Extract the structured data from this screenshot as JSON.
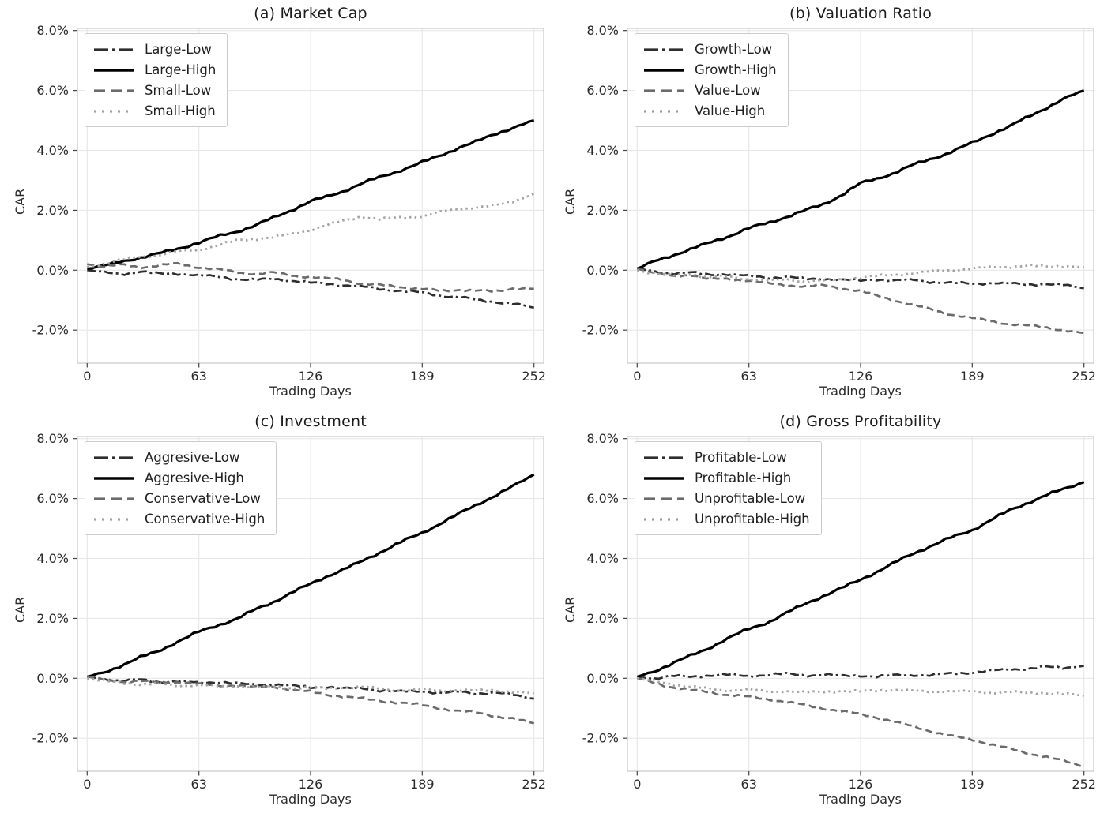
{
  "figure": {
    "background": "#ffffff",
    "grid_color": "#e7e7e7",
    "spine_color": "#cccccc",
    "tick_color": "#444444",
    "text_color": "#2a2a2a"
  },
  "line_styles": {
    "dashdot": {
      "color": "#2e2e2e",
      "width": 2.7,
      "dash": "11 4 3 4",
      "legend_dash": "18 5 3 5"
    },
    "solid": {
      "color": "#000000",
      "width": 3.2,
      "dash": "",
      "legend_dash": ""
    },
    "dashed": {
      "color": "#6b6b6b",
      "width": 2.7,
      "dash": "9 5",
      "legend_dash": "14 7"
    },
    "dotted": {
      "color": "#a3a3a3",
      "width": 2.8,
      "dash": "2.5 4.2",
      "legend_dash": "3 7"
    }
  },
  "axes": {
    "xlim": [
      -5.5,
      257.5
    ],
    "ylim": [
      -3.1,
      8.07
    ],
    "x_ticks": [
      0,
      63,
      126,
      189,
      252
    ],
    "x_tick_labels": [
      "0",
      "63",
      "126",
      "189",
      "252"
    ],
    "y_ticks": [
      8,
      6,
      4,
      2,
      0,
      -2
    ],
    "y_tick_labels": [
      "8.0%",
      "6.0%",
      "4.0%",
      "2.0%",
      "0.0%",
      "-2.0%"
    ],
    "grid": true,
    "legend_position": "upper left"
  },
  "chart_data": [
    {
      "id": "a",
      "type": "line",
      "title": "(a) Market Cap",
      "xlabel": "Trading Days",
      "ylabel": "CAR",
      "x": [
        0,
        10,
        20,
        30,
        40,
        50,
        63,
        75,
        85,
        95,
        105,
        115,
        126,
        135,
        145,
        155,
        165,
        175,
        189,
        200,
        210,
        220,
        230,
        240,
        252
      ],
      "series": [
        {
          "name": "Large-Low",
          "style": "dashdot",
          "values": [
            0.0,
            -0.08,
            -0.12,
            -0.05,
            -0.12,
            -0.1,
            -0.18,
            -0.22,
            -0.3,
            -0.33,
            -0.28,
            -0.35,
            -0.42,
            -0.45,
            -0.5,
            -0.55,
            -0.62,
            -0.68,
            -0.75,
            -0.85,
            -0.9,
            -1.0,
            -1.05,
            -1.12,
            -1.25
          ]
        },
        {
          "name": "Large-High",
          "style": "solid",
          "values": [
            0.05,
            0.15,
            0.3,
            0.42,
            0.55,
            0.7,
            0.92,
            1.15,
            1.3,
            1.5,
            1.75,
            2.0,
            2.3,
            2.45,
            2.65,
            2.9,
            3.1,
            3.3,
            3.6,
            3.85,
            4.1,
            4.3,
            4.55,
            4.75,
            5.0
          ]
        },
        {
          "name": "Small-Low",
          "style": "dashed",
          "values": [
            0.2,
            0.12,
            0.18,
            0.1,
            0.15,
            0.22,
            0.1,
            0.02,
            -0.08,
            -0.12,
            -0.08,
            -0.18,
            -0.22,
            -0.28,
            -0.32,
            -0.45,
            -0.5,
            -0.55,
            -0.62,
            -0.7,
            -0.65,
            -0.68,
            -0.72,
            -0.6,
            -0.62
          ]
        },
        {
          "name": "Small-High",
          "style": "dotted",
          "values": [
            0.1,
            0.22,
            0.35,
            0.45,
            0.5,
            0.62,
            0.68,
            0.85,
            1.0,
            1.05,
            1.1,
            1.2,
            1.35,
            1.5,
            1.65,
            1.8,
            1.7,
            1.75,
            1.8,
            1.95,
            2.05,
            2.1,
            2.15,
            2.3,
            2.55
          ]
        }
      ]
    },
    {
      "id": "b",
      "type": "line",
      "title": "(b) Valuation Ratio",
      "xlabel": "Trading Days",
      "ylabel": "CAR",
      "x": [
        0,
        10,
        20,
        30,
        40,
        50,
        63,
        75,
        85,
        95,
        105,
        115,
        126,
        135,
        145,
        155,
        165,
        175,
        189,
        200,
        210,
        220,
        230,
        240,
        252
      ],
      "series": [
        {
          "name": "Growth-Low",
          "style": "dashdot",
          "values": [
            0.05,
            -0.05,
            -0.1,
            -0.08,
            -0.15,
            -0.12,
            -0.2,
            -0.25,
            -0.22,
            -0.3,
            -0.28,
            -0.32,
            -0.35,
            -0.3,
            -0.35,
            -0.32,
            -0.38,
            -0.42,
            -0.45,
            -0.42,
            -0.45,
            -0.48,
            -0.45,
            -0.5,
            -0.6
          ]
        },
        {
          "name": "Growth-High",
          "style": "solid",
          "values": [
            0.05,
            0.3,
            0.5,
            0.7,
            0.9,
            1.1,
            1.4,
            1.6,
            1.8,
            2.0,
            2.2,
            2.5,
            2.9,
            3.05,
            3.25,
            3.5,
            3.7,
            3.9,
            4.25,
            4.55,
            4.8,
            5.1,
            5.4,
            5.7,
            6.0
          ]
        },
        {
          "name": "Value-Low",
          "style": "dashed",
          "values": [
            0.05,
            -0.1,
            -0.2,
            -0.15,
            -0.3,
            -0.28,
            -0.35,
            -0.45,
            -0.5,
            -0.55,
            -0.5,
            -0.6,
            -0.7,
            -0.85,
            -1.0,
            -1.15,
            -1.3,
            -1.45,
            -1.6,
            -1.7,
            -1.8,
            -1.85,
            -1.9,
            -2.0,
            -2.1
          ]
        },
        {
          "name": "Value-High",
          "style": "dotted",
          "values": [
            0.0,
            -0.12,
            -0.18,
            -0.12,
            -0.25,
            -0.2,
            -0.3,
            -0.35,
            -0.3,
            -0.38,
            -0.35,
            -0.3,
            -0.25,
            -0.2,
            -0.15,
            -0.1,
            -0.05,
            0.0,
            0.05,
            0.1,
            0.12,
            0.15,
            0.12,
            0.15,
            0.1
          ]
        }
      ]
    },
    {
      "id": "c",
      "type": "line",
      "title": "(c) Investment",
      "xlabel": "Trading Days",
      "ylabel": "CAR",
      "x": [
        0,
        10,
        20,
        30,
        40,
        50,
        63,
        75,
        85,
        95,
        105,
        115,
        126,
        135,
        145,
        155,
        165,
        175,
        189,
        200,
        210,
        220,
        230,
        240,
        252
      ],
      "series": [
        {
          "name": "Aggresive-Low",
          "style": "dashdot",
          "values": [
            0.05,
            -0.02,
            -0.08,
            -0.05,
            -0.12,
            -0.1,
            -0.15,
            -0.12,
            -0.18,
            -0.22,
            -0.2,
            -0.25,
            -0.3,
            -0.28,
            -0.35,
            -0.32,
            -0.4,
            -0.45,
            -0.42,
            -0.5,
            -0.45,
            -0.5,
            -0.48,
            -0.55,
            -0.68
          ]
        },
        {
          "name": "Aggresive-High",
          "style": "solid",
          "values": [
            0.05,
            0.2,
            0.45,
            0.7,
            0.9,
            1.2,
            1.55,
            1.8,
            2.0,
            2.3,
            2.55,
            2.85,
            3.15,
            3.4,
            3.65,
            3.9,
            4.2,
            4.5,
            4.85,
            5.2,
            5.5,
            5.8,
            6.1,
            6.4,
            6.8
          ]
        },
        {
          "name": "Conservative-Low",
          "style": "dashed",
          "values": [
            0.05,
            -0.05,
            -0.12,
            -0.08,
            -0.15,
            -0.12,
            -0.18,
            -0.25,
            -0.22,
            -0.3,
            -0.28,
            -0.38,
            -0.45,
            -0.55,
            -0.6,
            -0.68,
            -0.75,
            -0.8,
            -0.9,
            -1.0,
            -1.1,
            -1.15,
            -1.25,
            -1.35,
            -1.5
          ]
        },
        {
          "name": "Conservative-High",
          "style": "dotted",
          "values": [
            0.0,
            -0.1,
            -0.15,
            -0.2,
            -0.18,
            -0.25,
            -0.22,
            -0.28,
            -0.25,
            -0.3,
            -0.28,
            -0.32,
            -0.3,
            -0.35,
            -0.3,
            -0.28,
            -0.35,
            -0.4,
            -0.38,
            -0.42,
            -0.38,
            -0.42,
            -0.4,
            -0.45,
            -0.5
          ]
        }
      ]
    },
    {
      "id": "d",
      "type": "line",
      "title": "(d) Gross Profitability",
      "xlabel": "Trading Days",
      "ylabel": "CAR",
      "x": [
        0,
        10,
        20,
        30,
        40,
        50,
        63,
        75,
        85,
        95,
        105,
        115,
        126,
        135,
        145,
        155,
        165,
        175,
        189,
        200,
        210,
        220,
        230,
        240,
        252
      ],
      "series": [
        {
          "name": "Profitable-Low",
          "style": "dashdot",
          "values": [
            0.05,
            0.0,
            0.08,
            0.05,
            0.1,
            0.12,
            0.08,
            0.12,
            0.15,
            0.1,
            0.12,
            0.08,
            0.1,
            0.05,
            0.1,
            0.12,
            0.1,
            0.15,
            0.2,
            0.25,
            0.3,
            0.32,
            0.38,
            0.35,
            0.42
          ]
        },
        {
          "name": "Profitable-High",
          "style": "solid",
          "values": [
            0.05,
            0.25,
            0.5,
            0.75,
            1.0,
            1.3,
            1.65,
            1.9,
            2.2,
            2.5,
            2.75,
            3.0,
            3.3,
            3.55,
            3.85,
            4.15,
            4.4,
            4.65,
            4.95,
            5.3,
            5.6,
            5.85,
            6.1,
            6.3,
            6.55
          ]
        },
        {
          "name": "Unprofitable-Low",
          "style": "dashed",
          "values": [
            0.0,
            -0.15,
            -0.3,
            -0.4,
            -0.45,
            -0.55,
            -0.62,
            -0.7,
            -0.8,
            -0.9,
            -1.0,
            -1.1,
            -1.2,
            -1.3,
            -1.45,
            -1.6,
            -1.75,
            -1.9,
            -2.05,
            -2.2,
            -2.35,
            -2.5,
            -2.6,
            -2.75,
            -2.95
          ]
        },
        {
          "name": "Unprofitable-High",
          "style": "dotted",
          "values": [
            0.0,
            -0.1,
            -0.2,
            -0.28,
            -0.35,
            -0.4,
            -0.38,
            -0.45,
            -0.42,
            -0.48,
            -0.45,
            -0.42,
            -0.45,
            -0.4,
            -0.38,
            -0.42,
            -0.45,
            -0.42,
            -0.45,
            -0.48,
            -0.45,
            -0.5,
            -0.48,
            -0.52,
            -0.58
          ]
        }
      ]
    }
  ]
}
